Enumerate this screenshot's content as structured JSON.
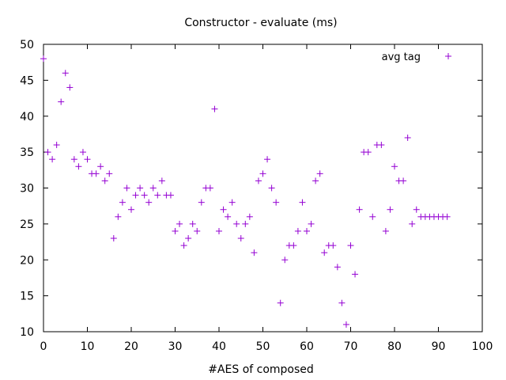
{
  "chart_data": {
    "type": "scatter",
    "title": "Constructor - evaluate (ms)",
    "xlabel": "#AES of composed",
    "ylabel": "",
    "xlim": [
      0,
      100
    ],
    "ylim": [
      10,
      50
    ],
    "xticks": [
      0,
      10,
      20,
      30,
      40,
      50,
      60,
      70,
      80,
      90,
      100
    ],
    "yticks": [
      10,
      15,
      20,
      25,
      30,
      35,
      40,
      45,
      50
    ],
    "grid": false,
    "legend_position": "top-right",
    "series": [
      {
        "name": "avg tag",
        "color": "#9400d3",
        "marker": "plus",
        "x": [
          0,
          1,
          2,
          3,
          4,
          5,
          6,
          7,
          8,
          9,
          10,
          11,
          12,
          13,
          14,
          15,
          16,
          17,
          18,
          19,
          20,
          21,
          22,
          23,
          24,
          25,
          26,
          27,
          28,
          29,
          30,
          31,
          32,
          33,
          34,
          35,
          36,
          37,
          38,
          39,
          40,
          41,
          42,
          43,
          44,
          45,
          46,
          47,
          48,
          49,
          50,
          51,
          52,
          53,
          54,
          55,
          56,
          57,
          58,
          59,
          60,
          61,
          62,
          63,
          64,
          65,
          66,
          67,
          68,
          69,
          70,
          71,
          72,
          73,
          74,
          75,
          76,
          77,
          78,
          79,
          80,
          81,
          82,
          83,
          84,
          85,
          86,
          87,
          88,
          89,
          90,
          91,
          92
        ],
        "y": [
          48,
          35,
          34,
          36,
          42,
          46,
          44,
          34,
          33,
          35,
          34,
          32,
          32,
          33,
          31,
          32,
          23,
          26,
          28,
          30,
          27,
          29,
          30,
          29,
          28,
          30,
          29,
          31,
          29,
          29,
          24,
          25,
          22,
          23,
          25,
          24,
          28,
          30,
          30,
          41,
          24,
          27,
          26,
          28,
          25,
          23,
          25,
          26,
          21,
          31,
          32,
          34,
          30,
          28,
          14,
          20,
          22,
          22,
          24,
          28,
          24,
          25,
          31,
          32,
          21,
          22,
          22,
          19,
          14,
          11,
          22,
          18,
          27,
          35,
          35,
          26,
          36,
          36,
          24,
          27,
          33,
          31,
          31,
          37,
          25,
          27,
          26,
          26,
          26,
          26,
          26,
          26,
          26
        ]
      }
    ]
  }
}
